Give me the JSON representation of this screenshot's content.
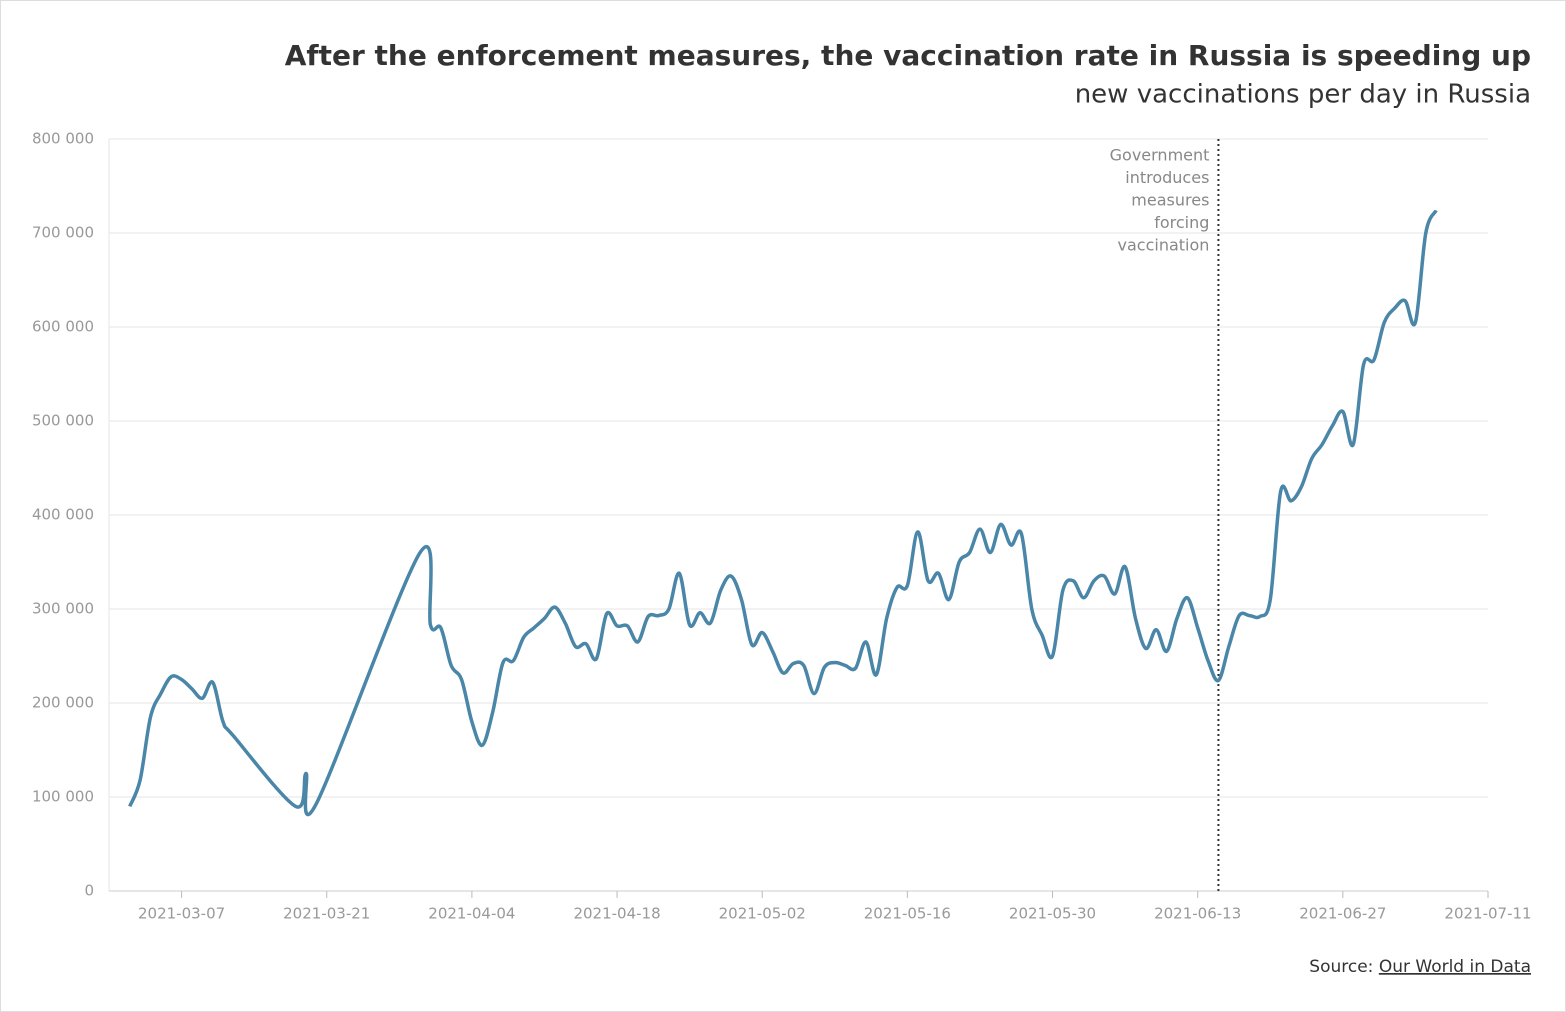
{
  "chart_data": {
    "type": "line",
    "title": "After the enforcement measures, the vaccination rate in Russia is speeding up",
    "subtitle": "new vaccinations per day in Russia",
    "source_prefix": "Source:",
    "source_link": "Our World in Data",
    "annotation": {
      "x": "2021-06-15",
      "lines": [
        "Government",
        "introduces",
        "measures",
        "forcing",
        "vaccination"
      ]
    },
    "x": [
      "2021-03-02",
      "2021-03-03",
      "2021-03-04",
      "2021-03-05",
      "2021-03-06",
      "2021-03-07",
      "2021-03-08",
      "2021-03-09",
      "2021-03-10",
      "2021-03-11",
      "2021-03-12",
      "2021-03-18",
      "2021-03-19",
      "2021-03-20",
      "2021-03-30",
      "2021-03-31",
      "2021-04-01",
      "2021-04-02",
      "2021-04-03",
      "2021-04-04",
      "2021-04-05",
      "2021-04-06",
      "2021-04-07",
      "2021-04-08",
      "2021-04-09",
      "2021-04-10",
      "2021-04-11",
      "2021-04-12",
      "2021-04-13",
      "2021-04-14",
      "2021-04-15",
      "2021-04-16",
      "2021-04-17",
      "2021-04-18",
      "2021-04-19",
      "2021-04-20",
      "2021-04-21",
      "2021-04-22",
      "2021-04-23",
      "2021-04-24",
      "2021-04-25",
      "2021-04-26",
      "2021-04-27",
      "2021-04-28",
      "2021-04-29",
      "2021-04-30",
      "2021-05-01",
      "2021-05-02",
      "2021-05-03",
      "2021-05-04",
      "2021-05-05",
      "2021-05-06",
      "2021-05-07",
      "2021-05-08",
      "2021-05-09",
      "2021-05-10",
      "2021-05-11",
      "2021-05-12",
      "2021-05-13",
      "2021-05-14",
      "2021-05-15",
      "2021-05-16",
      "2021-05-17",
      "2021-05-18",
      "2021-05-19",
      "2021-05-20",
      "2021-05-21",
      "2021-05-22",
      "2021-05-23",
      "2021-05-24",
      "2021-05-25",
      "2021-05-26",
      "2021-05-27",
      "2021-05-28",
      "2021-05-29",
      "2021-05-30",
      "2021-05-31",
      "2021-06-01",
      "2021-06-02",
      "2021-06-03",
      "2021-06-04",
      "2021-06-05",
      "2021-06-06",
      "2021-06-07",
      "2021-06-08",
      "2021-06-09",
      "2021-06-10",
      "2021-06-11",
      "2021-06-12",
      "2021-06-13",
      "2021-06-14",
      "2021-06-15",
      "2021-06-16",
      "2021-06-17",
      "2021-06-18",
      "2021-06-19",
      "2021-06-20",
      "2021-06-21",
      "2021-06-22",
      "2021-06-23",
      "2021-06-24",
      "2021-06-25",
      "2021-06-26",
      "2021-06-27",
      "2021-06-28",
      "2021-06-29",
      "2021-06-30",
      "2021-07-01",
      "2021-07-02",
      "2021-07-03",
      "2021-07-04",
      "2021-07-05",
      "2021-07-06"
    ],
    "series": [
      {
        "name": "new vaccinations",
        "color": "#4a86a8",
        "values": [
          90000,
          118000,
          185000,
          210000,
          228000,
          225000,
          215000,
          205000,
          222000,
          180000,
          165000,
          90000,
          125000,
          93000,
          360000,
          283000,
          280000,
          240000,
          225000,
          180000,
          155000,
          190000,
          243000,
          245000,
          270000,
          280000,
          290000,
          302000,
          285000,
          260000,
          263000,
          247000,
          295000,
          282000,
          282000,
          265000,
          292000,
          293000,
          300000,
          338000,
          283000,
          296000,
          285000,
          320000,
          335000,
          310000,
          262000,
          275000,
          255000,
          232000,
          242000,
          240000,
          210000,
          238000,
          243000,
          240000,
          237000,
          265000,
          230000,
          290000,
          323000,
          325000,
          382000,
          330000,
          338000,
          310000,
          350000,
          360000,
          385000,
          360000,
          390000,
          368000,
          380000,
          300000,
          272000,
          250000,
          320000,
          330000,
          312000,
          330000,
          335000,
          316000,
          345000,
          290000,
          258000,
          278000,
          255000,
          290000,
          312000,
          280000,
          245000,
          224000,
          260000,
          293000,
          293000,
          292000,
          310000,
          425000,
          415000,
          430000,
          460000,
          475000,
          495000,
          510000,
          475000,
          560000,
          565000,
          605000,
          620000,
          628000,
          605000,
          700000,
          724000
        ]
      }
    ],
    "xlim": [
      "2021-02-28",
      "2021-07-11"
    ],
    "xticks": [
      "2021-03-07",
      "2021-03-21",
      "2021-04-04",
      "2021-04-18",
      "2021-05-02",
      "2021-05-16",
      "2021-05-30",
      "2021-06-13",
      "2021-06-27",
      "2021-07-11"
    ],
    "ylim": [
      0,
      800000
    ],
    "yticks": [
      0,
      {
        "value": 100000,
        "label": "100 000"
      },
      {
        "value": 200000,
        "label": "200 000"
      },
      {
        "value": 300000,
        "label": "300 000"
      },
      {
        "value": 400000,
        "label": "400 000"
      },
      {
        "value": 500000,
        "label": "500 000"
      },
      {
        "value": 600000,
        "label": "600 000"
      },
      {
        "value": 700000,
        "label": "700 000"
      },
      {
        "value": 800000,
        "label": "800 000"
      }
    ],
    "grid": true
  }
}
